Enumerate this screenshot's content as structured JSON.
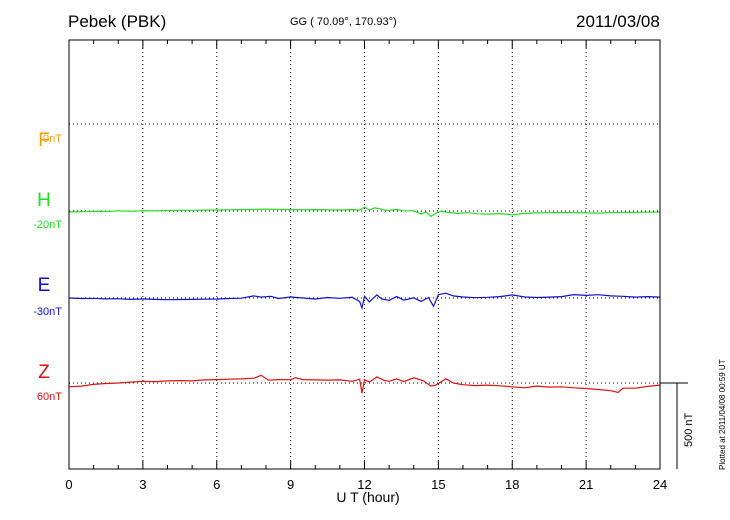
{
  "header": {
    "station": "Pebek (PBK)",
    "coords": "GG ( 70.09°, 170.93°)",
    "date": "2011/03/08"
  },
  "footer": {
    "plotted": "Plotted at 2011/04/08 00:59 UT"
  },
  "chart_data": {
    "type": "line",
    "title": "Pebek (PBK)",
    "xlabel": "U T (hour)",
    "xlim": [
      0,
      24
    ],
    "xticks": [
      "0",
      "3",
      "6",
      "9",
      "12",
      "15",
      "18",
      "21",
      "24"
    ],
    "grid": true,
    "scale_bar": {
      "label": "500 nT",
      "value_nT": 500
    },
    "series": [
      {
        "name": "F",
        "offset_label": "0nT",
        "color": "#f5a000",
        "values": []
      },
      {
        "name": "H",
        "offset_label": "-20nT",
        "color": "#22dd22",
        "x": [
          0,
          0.5,
          1,
          1.5,
          2,
          2.5,
          3,
          3.5,
          4,
          4.5,
          5,
          5.5,
          6,
          6.5,
          7,
          7.5,
          8,
          8.5,
          9,
          9.5,
          10,
          10.5,
          11,
          11.5,
          11.8,
          12,
          12.2,
          12.4,
          12.6,
          12.8,
          13,
          13.3,
          13.6,
          14,
          14.3,
          14.5,
          14.7,
          14.9,
          15.1,
          15.4,
          15.8,
          16.2,
          16.6,
          17,
          17.5,
          18,
          18.5,
          19,
          19.5,
          20,
          20.5,
          21,
          21.5,
          22,
          22.5,
          23,
          23.5,
          24
        ],
        "values": [
          -5,
          -4,
          -2,
          -3,
          1,
          -2,
          2,
          1,
          3,
          4,
          4,
          5,
          6,
          7,
          8,
          9,
          11,
          9,
          8,
          7,
          8,
          7,
          6,
          8,
          5,
          22,
          6,
          18,
          14,
          5,
          3,
          9,
          2,
          1,
          -18,
          -6,
          -32,
          -12,
          -2,
          -8,
          -14,
          -10,
          -16,
          -18,
          -15,
          -22,
          -14,
          -11,
          -10,
          -9,
          -10,
          -11,
          -12,
          -10,
          -8,
          -8,
          -7,
          -6
        ]
      },
      {
        "name": "E",
        "offset_label": "-30nT",
        "color": "#1010cc",
        "x": [
          0,
          0.5,
          1,
          1.5,
          2,
          2.5,
          3,
          3.5,
          4,
          4.5,
          5,
          5.5,
          6,
          6.5,
          7,
          7.5,
          7.8,
          8.2,
          8.5,
          9,
          9.5,
          10,
          10.5,
          11,
          11.5,
          11.8,
          11.9,
          12,
          12.2,
          12.5,
          12.7,
          13,
          13.3,
          13.6,
          14,
          14.3,
          14.6,
          14.8,
          15,
          15.3,
          15.6,
          16,
          16.5,
          17,
          17.5,
          18,
          18.5,
          19,
          19.5,
          20,
          20.5,
          21,
          21.5,
          22,
          22.5,
          23,
          23.5,
          24
        ],
        "values": [
          0,
          -3,
          -2,
          -5,
          -4,
          -8,
          -5,
          -8,
          -10,
          -9,
          -8,
          -7,
          -6,
          -3,
          -1,
          12,
          5,
          10,
          -3,
          6,
          0,
          -6,
          3,
          -2,
          4,
          -20,
          -58,
          10,
          -22,
          18,
          -6,
          -14,
          8,
          -12,
          1,
          -20,
          3,
          -48,
          20,
          28,
          12,
          6,
          2,
          4,
          8,
          18,
          6,
          3,
          5,
          8,
          20,
          15,
          19,
          12,
          10,
          5,
          8,
          5
        ]
      },
      {
        "name": "Z",
        "offset_label": "60nT",
        "color": "#dd1111",
        "x": [
          0,
          0.5,
          1,
          1.5,
          2,
          2.5,
          3,
          3.5,
          4,
          4.5,
          5,
          5.5,
          6,
          6.5,
          7,
          7.5,
          7.8,
          8.1,
          8.5,
          9,
          9.2,
          9.5,
          10,
          10.5,
          11,
          11.5,
          11.8,
          11.9,
          12,
          12.2,
          12.5,
          12.8,
          13,
          13.3,
          13.6,
          14,
          14.4,
          14.7,
          14.9,
          15.1,
          15.3,
          15.6,
          16,
          16.5,
          17,
          17.5,
          18,
          18.5,
          19,
          19.5,
          20,
          20.5,
          21,
          21.5,
          22,
          22.3,
          22.5,
          23,
          23.5,
          24
        ],
        "values": [
          -22,
          -18,
          -8,
          -3,
          0,
          5,
          10,
          8,
          12,
          14,
          12,
          18,
          20,
          22,
          24,
          28,
          45,
          16,
          20,
          19,
          30,
          20,
          18,
          17,
          18,
          10,
          22,
          -60,
          20,
          5,
          35,
          15,
          10,
          24,
          8,
          30,
          12,
          -18,
          -12,
          6,
          25,
          0,
          -10,
          -15,
          -12,
          -16,
          -22,
          -28,
          -18,
          -24,
          -22,
          -28,
          -32,
          -38,
          -45,
          -55,
          -30,
          -30,
          -20,
          -12
        ]
      }
    ]
  }
}
